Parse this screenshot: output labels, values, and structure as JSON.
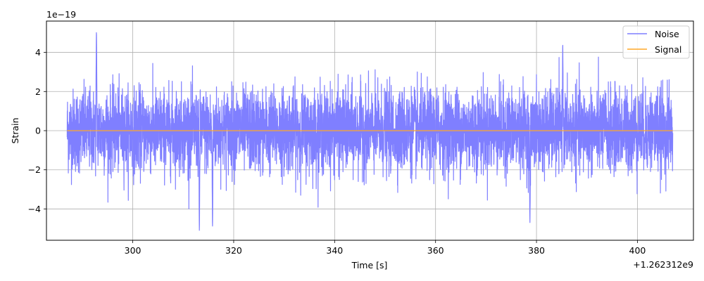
{
  "chart_data": {
    "type": "line",
    "title": "",
    "xlabel": "Time [s]",
    "ylabel": "Strain",
    "x_offset_label": "+1.262312e9",
    "y_scale_label": "1e−19",
    "xlim": [
      282.9,
      411.1
    ],
    "ylim": [
      -5.6,
      5.6
    ],
    "x_ticks": [
      300,
      320,
      340,
      360,
      380,
      400
    ],
    "x_tick_labels": [
      "300",
      "320",
      "340",
      "360",
      "380",
      "400"
    ],
    "y_ticks": [
      -4,
      -2,
      0,
      2,
      4
    ],
    "y_tick_labels": [
      "−4",
      "−2",
      "0",
      "2",
      "4"
    ],
    "grid": true,
    "legend_position": "top-right",
    "series": [
      {
        "name": "Noise",
        "color": "#7f7fff",
        "x_range": [
          287,
          407
        ],
        "amplitude_envelope": [
          -5.1,
          5.05
        ],
        "notable_peaks": [
          {
            "x": 292.8,
            "y": 5.05
          },
          {
            "x": 313.2,
            "y": -5.1
          },
          {
            "x": 315.8,
            "y": -4.9
          },
          {
            "x": 378.7,
            "y": -4.7
          },
          {
            "x": 385.2,
            "y": 4.4
          }
        ]
      },
      {
        "name": "Signal",
        "color": "#ffa726",
        "x_range": [
          287,
          407
        ],
        "y_value": 0
      }
    ]
  }
}
